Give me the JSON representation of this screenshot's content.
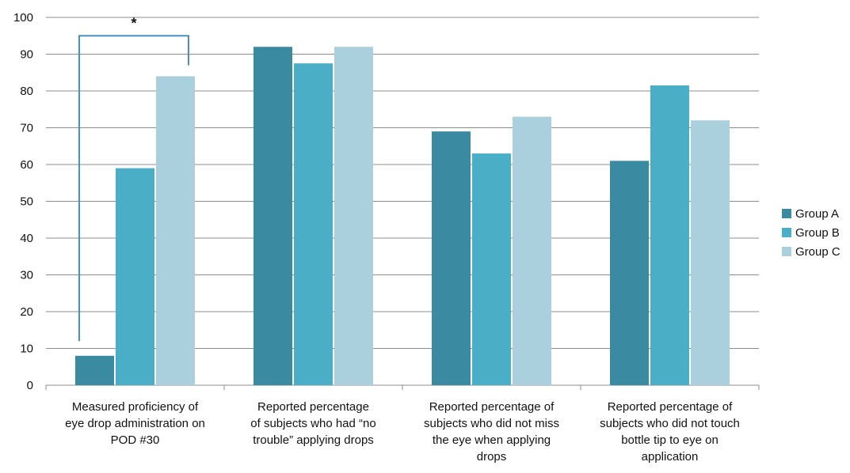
{
  "chart_data": {
    "type": "bar",
    "title": "",
    "xlabel": "",
    "ylabel": "",
    "ylim": [
      0,
      100
    ],
    "yticks": [
      0,
      10,
      20,
      30,
      40,
      50,
      60,
      70,
      80,
      90,
      100
    ],
    "grid": true,
    "legend_position": "right",
    "categories": [
      [
        "Measured proficiency of",
        "eye drop administration on",
        "POD #30"
      ],
      [
        "Reported percentage",
        "of subjects who had “no",
        "trouble” applying drops"
      ],
      [
        "Reported percentage of",
        "subjects who did not miss",
        "the eye when applying",
        "drops"
      ],
      [
        "Reported percentage of",
        "subjects who did not touch",
        "bottle tip to eye on",
        "application"
      ]
    ],
    "series": [
      {
        "name": "Group A",
        "color": "#3a8aa1",
        "values": [
          8,
          92,
          69,
          61
        ]
      },
      {
        "name": "Group B",
        "color": "#4aaec6",
        "values": [
          59,
          87.5,
          63,
          81.5
        ]
      },
      {
        "name": "Group C",
        "color": "#a9d0dc",
        "values": [
          84,
          92,
          73,
          72
        ]
      }
    ],
    "annotations": [
      {
        "type": "significance-bracket",
        "label": "*",
        "category_index": 0,
        "from_series": 0,
        "to_series": 2,
        "top_value": 95,
        "color": "#4a90c4"
      }
    ]
  }
}
